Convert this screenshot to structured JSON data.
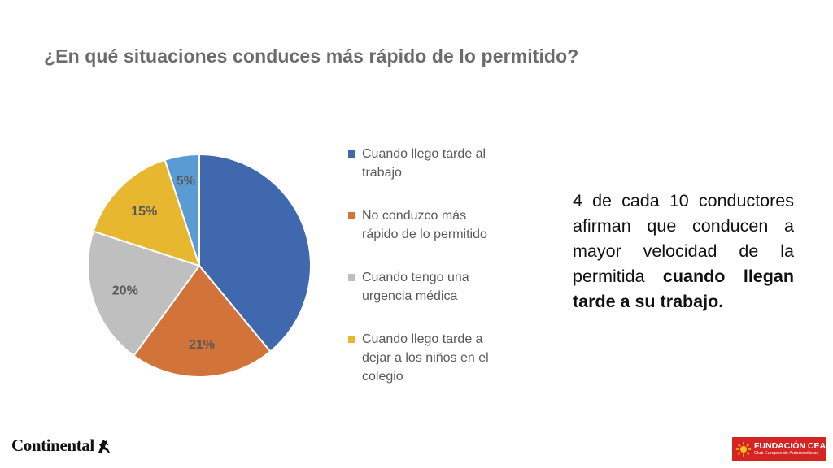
{
  "page": {
    "title": "¿En qué situaciones conduces más rápido de lo permitido?"
  },
  "chart_data": {
    "type": "pie",
    "categories": [
      "Cuando llego tarde al trabajo",
      "No conduzco más rápido de lo permitido",
      "Cuando tengo una urgencia médica",
      "Cuando llego tarde a dejar a los niños en el colegio",
      ""
    ],
    "values": [
      39,
      21,
      20,
      15,
      5
    ],
    "data_labels": [
      "39%",
      "21%",
      "20%",
      "15%",
      "5%"
    ],
    "colors": [
      "#4068ae",
      "#d2733a",
      "#bfbfbf",
      "#e8b730",
      "#5b9bd3"
    ],
    "label_colors": [
      "#4068ae",
      "#595959",
      "#595959",
      "#595959",
      "#595959"
    ],
    "start_angle_deg": 0,
    "direction": "clockwise",
    "legend_position": "right"
  },
  "legend": {
    "items": [
      {
        "label": "Cuando llego tarde al trabajo",
        "color": "#4068ae"
      },
      {
        "label": "No conduzco más rápido de lo permitido",
        "color": "#d2733a"
      },
      {
        "label": "Cuando tengo una urgencia médica",
        "color": "#bfbfbf"
      },
      {
        "label": "Cuando llego tarde a dejar a los niños en el colegio",
        "color": "#e8b730"
      }
    ]
  },
  "callout": {
    "text_plain": "4 de cada 10 conductores afirman que conducen a mayor velocidad de la permitida ",
    "text_bold": "cuando llegan tarde a su trabajo."
  },
  "logos": {
    "continental": {
      "text": "Continental",
      "icon": "horse-icon"
    },
    "fundacion": {
      "name": "FUNDACIÓN CEA",
      "subtitle": "Club Europeo de Automovilistas",
      "icon": "sun-icon",
      "color": "#d42424"
    }
  }
}
